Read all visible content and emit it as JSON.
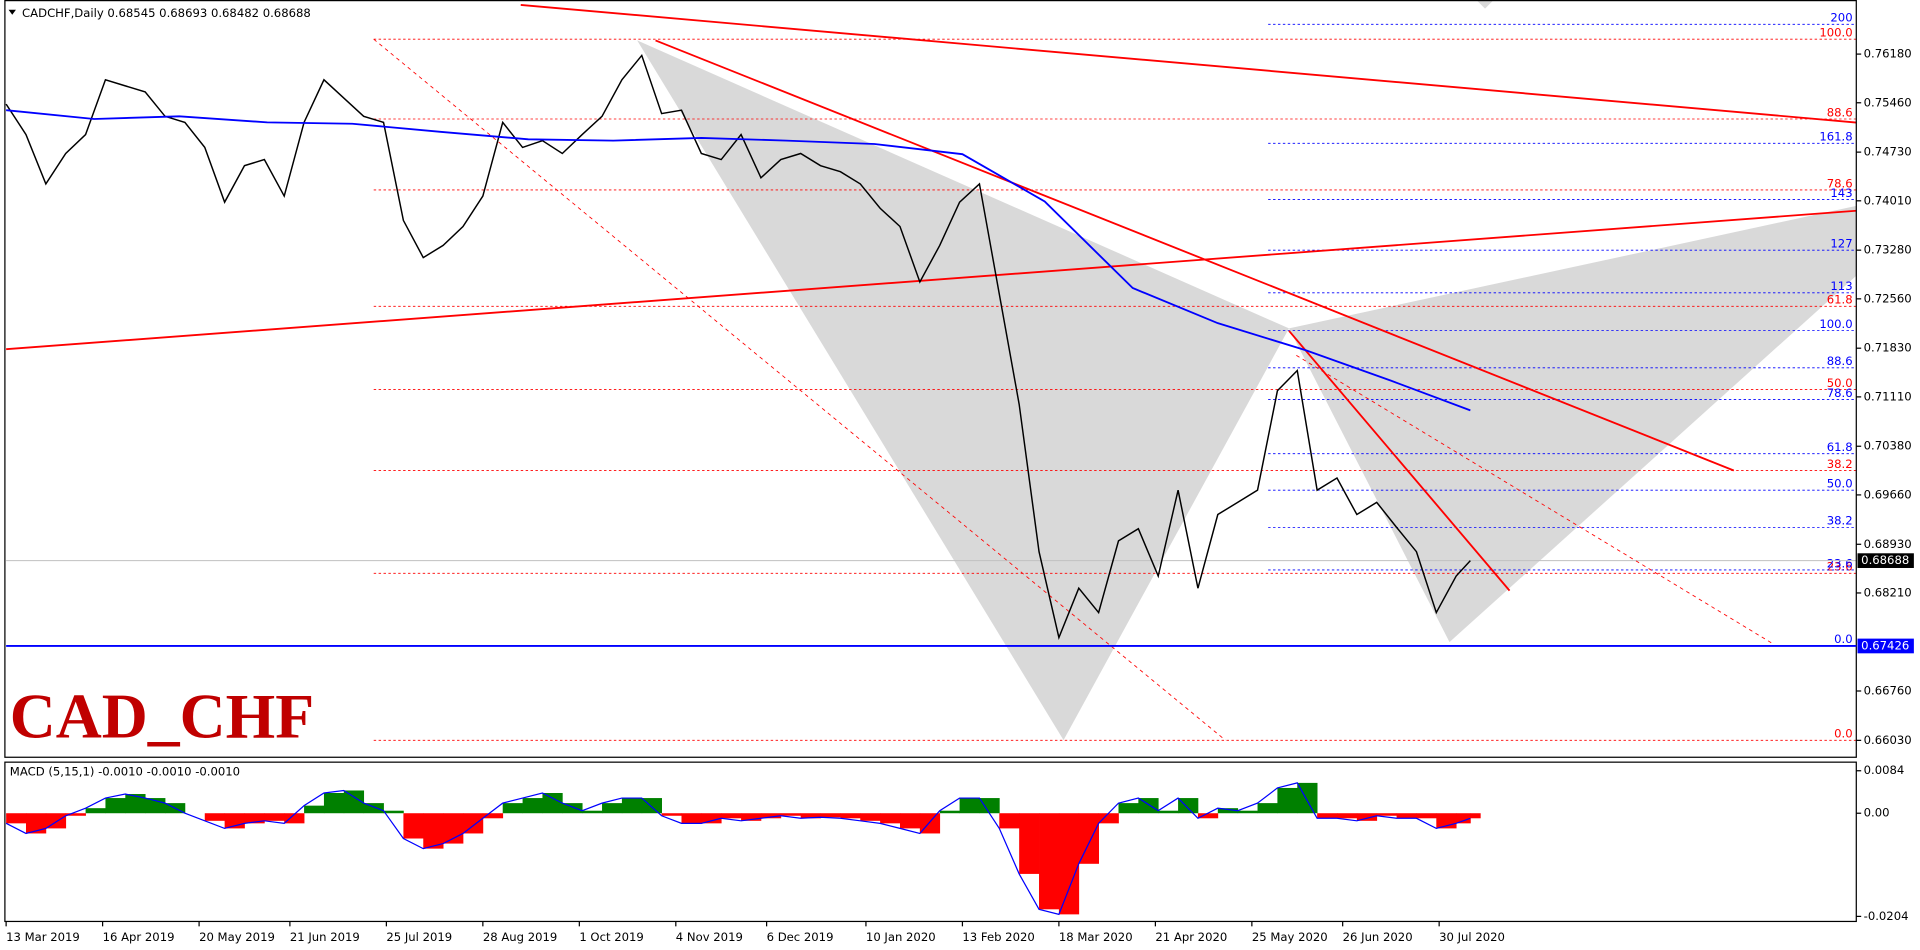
{
  "chart_data": {
    "type": "line",
    "title": "CADCHF,Daily  0.68545 0.68693 0.68482 0.68688",
    "watermark": "CAD_CHF",
    "xlim": [
      "13 Mar 2019",
      "24 Dec 2020"
    ],
    "xticks": [
      "13 Mar 2019",
      "16 Apr 2019",
      "20 May 2019",
      "21 Jun 2019",
      "25 Jul 2019",
      "28 Aug 2019",
      "1 Oct 2019",
      "4 Nov 2019",
      "6 Dec 2019",
      "10 Jan 2020",
      "13 Feb 2020",
      "18 Mar 2020",
      "21 Apr 2020",
      "25 May 2020",
      "26 Jun 2020",
      "30 Jul 2020"
    ],
    "ylim": [
      0.6578,
      0.7698
    ],
    "yticks": [
      {
        "value": 0.7618,
        "label": "0.76180"
      },
      {
        "value": 0.7546,
        "label": "0.75460"
      },
      {
        "value": 0.7473,
        "label": "0.74730"
      },
      {
        "value": 0.7401,
        "label": "0.74010"
      },
      {
        "value": 0.7328,
        "label": "0.73280"
      },
      {
        "value": 0.7256,
        "label": "0.72560"
      },
      {
        "value": 0.7183,
        "label": "0.71830"
      },
      {
        "value": 0.7111,
        "label": "0.71110"
      },
      {
        "value": 0.7038,
        "label": "0.70380"
      },
      {
        "value": 0.6966,
        "label": "0.69660"
      },
      {
        "value": 0.6893,
        "label": "0.68930"
      },
      {
        "value": 0.6821,
        "label": "0.68210"
      },
      {
        "value": 0.6676,
        "label": "0.66760"
      },
      {
        "value": 0.6603,
        "label": "0.66030"
      }
    ],
    "series": [
      {
        "color": "#000000",
        "x": [
          "13 Mar 2019",
          "20 Mar 2019",
          "27 Mar 2019",
          "3 Apr 2019",
          "10 Apr 2019",
          "17 Apr 2019",
          "24 Apr 2019",
          "1 May 2019",
          "8 May 2019",
          "15 May 2019",
          "22 May 2019",
          "29 May 2019",
          "5 Jun 2019",
          "12 Jun 2019",
          "19 Jun 2019",
          "26 Jun 2019",
          "3 Jul 2019",
          "10 Jul 2019",
          "17 Jul 2019",
          "24 Jul 2019",
          "31 Jul 2019",
          "7 Aug 2019",
          "14 Aug 2019",
          "21 Aug 2019",
          "28 Aug 2019",
          "4 Sep 2019",
          "11 Sep 2019",
          "18 Sep 2019",
          "25 Sep 2019",
          "2 Oct 2019",
          "9 Oct 2019",
          "16 Oct 2019",
          "23 Oct 2019",
          "30 Oct 2019",
          "6 Nov 2019",
          "13 Nov 2019",
          "20 Nov 2019",
          "27 Nov 2019",
          "4 Dec 2019",
          "11 Dec 2019",
          "18 Dec 2019",
          "25 Dec 2019",
          "1 Jan 2020",
          "8 Jan 2020",
          "15 Jan 2020",
          "22 Jan 2020",
          "29 Jan 2020",
          "5 Feb 2020",
          "12 Feb 2020",
          "19 Feb 2020",
          "26 Feb 2020",
          "4 Mar 2020",
          "11 Mar 2020",
          "18 Mar 2020",
          "25 Mar 2020",
          "1 Apr 2020",
          "8 Apr 2020",
          "15 Apr 2020",
          "22 Apr 2020",
          "29 Apr 2020",
          "6 May 2020",
          "13 May 2020",
          "20 May 2020",
          "27 May 2020",
          "3 Jun 2020",
          "10 Jun 2020",
          "17 Jun 2020",
          "24 Jun 2020",
          "1 Jul 2020",
          "8 Jul 2020",
          "15 Jul 2020",
          "22 Jul 2020",
          "29 Jul 2020",
          "5 Aug 2020",
          "10 Aug 2020"
        ],
        "values": [
          0.7544,
          0.7499,
          0.7426,
          0.7471,
          0.7499,
          0.758,
          0.7571,
          0.7562,
          0.7526,
          0.7517,
          0.748,
          0.7399,
          0.7453,
          0.7462,
          0.7408,
          0.7517,
          0.758,
          0.7553,
          0.7526,
          0.7517,
          0.7372,
          0.7317,
          0.7335,
          0.7363,
          0.7408,
          0.7517,
          0.748,
          0.749,
          0.7471,
          0.7499,
          0.7526,
          0.758,
          0.7616,
          0.753,
          0.7535,
          0.7471,
          0.7462,
          0.7499,
          0.7435,
          0.7462,
          0.7471,
          0.7453,
          0.7444,
          0.7426,
          0.739,
          0.7363,
          0.7281,
          0.7335,
          0.7399,
          0.7426,
          0.7263,
          0.71,
          0.6882,
          0.6755,
          0.6828,
          0.6792,
          0.6898,
          0.6916,
          0.6846,
          0.6973,
          0.6828,
          0.6937,
          0.6955,
          0.6973,
          0.712,
          0.715,
          0.6973,
          0.6991,
          0.6937,
          0.6955,
          0.6918,
          0.6882,
          0.6792,
          0.6846,
          0.68688
        ]
      },
      {
        "color": "#0000ff",
        "x": [
          "13 Mar 2019",
          "13 Apr 2019",
          "13 May 2019",
          "13 Jun 2019",
          "13 Jul 2019",
          "13 Aug 2019",
          "13 Sep 2019",
          "13 Oct 2019",
          "13 Nov 2019",
          "13 Dec 2019",
          "13 Jan 2020",
          "13 Feb 2020",
          "13 Mar 2020",
          "13 Apr 2020",
          "13 May 2020",
          "13 Jun 2020",
          "13 Jul 2020",
          "10 Aug 2020"
        ],
        "values": [
          0.7535,
          0.7522,
          0.7526,
          0.7517,
          0.7515,
          0.7503,
          0.7492,
          0.749,
          0.7494,
          0.749,
          0.7485,
          0.747,
          0.74,
          0.7272,
          0.722,
          0.718,
          0.7135,
          0.7091
        ]
      }
    ],
    "price_label": {
      "value": 0.68688,
      "label": "0.68688"
    },
    "support": {
      "value": 0.67426,
      "label": "0.67426"
    },
    "fib_red": [
      {
        "label": "100.0",
        "price": 0.764
      },
      {
        "label": "88.6",
        "price": 0.7522
      },
      {
        "label": "78.6",
        "price": 0.7417
      },
      {
        "label": "61.8",
        "price": 0.7245
      },
      {
        "label": "50.0",
        "price": 0.7122
      },
      {
        "label": "38.2",
        "price": 0.7002
      },
      {
        "label": "23.6",
        "price": 0.685
      },
      {
        "label": "0.0",
        "price": 0.6603
      }
    ],
    "fib_blue": [
      {
        "label": "200",
        "price": 0.7662
      },
      {
        "label": "161.8",
        "price": 0.7486
      },
      {
        "label": "143",
        "price": 0.7403
      },
      {
        "label": "127",
        "price": 0.7328
      },
      {
        "label": "113",
        "price": 0.7265
      },
      {
        "label": "100.0",
        "price": 0.7209
      },
      {
        "label": "88.6",
        "price": 0.7154
      },
      {
        "label": "78.6",
        "price": 0.7107
      },
      {
        "label": "61.8",
        "price": 0.7027
      },
      {
        "label": "50.0",
        "price": 0.6973
      },
      {
        "label": "38.2",
        "price": 0.6918
      },
      {
        "label": "23.6",
        "price": 0.6855
      },
      {
        "label": "0.0",
        "price": 0.6743
      }
    ],
    "macd": {
      "title": "MACD (5,15,1) -0.0010 -0.0010 -0.0010",
      "ylim": [
        -0.0214,
        0.0101
      ],
      "yticks": [
        0.0084,
        {
          "value": 0,
          "label": "0.00"
        },
        -0.0204
      ],
      "positive_color": "#008000",
      "negative_color": "#ff0000",
      "line_color": "#0000ff",
      "values": [
        -0.002,
        -0.004,
        -0.003,
        -0.0005,
        0.001,
        0.003,
        0.0038,
        0.003,
        0.002,
        0,
        -0.0015,
        -0.003,
        -0.002,
        -0.0015,
        -0.002,
        0.0015,
        0.004,
        0.0045,
        0.002,
        0.0005,
        -0.005,
        -0.007,
        -0.006,
        -0.004,
        -0.001,
        0.002,
        0.003,
        0.004,
        0.002,
        0.0005,
        0.002,
        0.003,
        0.003,
        -0.0005,
        -0.002,
        -0.002,
        -0.001,
        -0.0015,
        -0.001,
        -0.0005,
        -0.001,
        -0.0008,
        -0.001,
        -0.0015,
        -0.002,
        -0.003,
        -0.004,
        0.0005,
        0.003,
        0.003,
        -0.003,
        -0.012,
        -0.019,
        -0.02,
        -0.01,
        -0.002,
        0.002,
        0.003,
        0.0005,
        0.003,
        -0.001,
        0.001,
        0.0005,
        0.002,
        0.005,
        0.006,
        -0.001,
        -0.001,
        -0.0015,
        -0.0005,
        -0.001,
        -0.001,
        -0.003,
        -0.002,
        -0.001
      ]
    }
  }
}
